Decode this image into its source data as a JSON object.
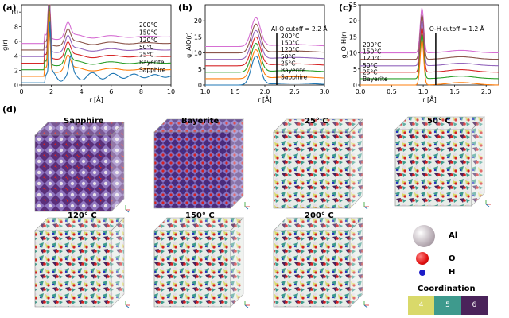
{
  "figure": {
    "panel_a_label": "(a)",
    "panel_b_label": "(b)",
    "panel_c_label": "(c)",
    "panel_d_label": "(d)",
    "colors": {
      "200C": "#d66fd3",
      "150C": "#8c564b",
      "120C": "#9467bd",
      "50C": "#d62728",
      "25C": "#2ca02c",
      "Bayerite": "#ff7f0e",
      "Sapphire": "#1f77b4",
      "cutoff": "#000000"
    }
  },
  "chart_data": [
    {
      "type": "line",
      "panel": "(a)",
      "title": "",
      "xlabel": "r [Å]",
      "ylabel": "g(r)",
      "xlim": [
        0,
        10
      ],
      "ylim": [
        0,
        11
      ],
      "xticks": [
        "0",
        "2",
        "4",
        "6",
        "8",
        "10"
      ],
      "yticks": [
        "0",
        "2",
        "4",
        "6",
        "8",
        "10"
      ],
      "offset_legend": [
        "200°C",
        "150°C",
        "120°C",
        "50°C",
        "25°C",
        "Bayerite",
        "Sapphire"
      ],
      "series": [
        {
          "name": "200°C",
          "offset": 6.0,
          "color": "#d66fd3"
        },
        {
          "name": "150°C",
          "offset": 5.0,
          "color": "#8c564b"
        },
        {
          "name": "120°C",
          "offset": 4.0,
          "color": "#9467bd"
        },
        {
          "name": "50°C",
          "offset": 3.0,
          "color": "#d62728"
        },
        {
          "name": "25°C",
          "offset": 2.0,
          "color": "#2ca02c"
        },
        {
          "name": "Bayerite",
          "offset": 1.0,
          "color": "#ff7f0e"
        },
        {
          "name": "Sapphire",
          "offset": 0.0,
          "color": "#1f77b4"
        }
      ]
    },
    {
      "type": "line",
      "panel": "(b)",
      "title": "",
      "xlabel": "r [Å]",
      "ylabel": "g_AlO(r)",
      "xlim": [
        1.0,
        3.0
      ],
      "ylim": [
        0,
        25
      ],
      "xticks": [
        "1.0",
        "1.5",
        "2.0",
        "2.5",
        "3.0"
      ],
      "yticks": [
        "0",
        "5",
        "10",
        "15",
        "20"
      ],
      "cutoff_label": "Al-O cutoff = 2.2 Å",
      "cutoff_x": 2.2,
      "offset_legend": [
        "200°C",
        "150°C",
        "120°C",
        "50°C",
        "25°C",
        "Bayerite",
        "Sapphire"
      ],
      "series": [
        {
          "name": "200°C",
          "offset": 12.0,
          "color": "#d66fd3"
        },
        {
          "name": "150°C",
          "offset": 10.0,
          "color": "#8c564b"
        },
        {
          "name": "120°C",
          "offset": 8.0,
          "color": "#9467bd"
        },
        {
          "name": "50°C",
          "offset": 6.0,
          "color": "#d62728"
        },
        {
          "name": "25°C",
          "offset": 4.0,
          "color": "#2ca02c"
        },
        {
          "name": "Bayerite",
          "offset": 2.0,
          "color": "#ff7f0e"
        },
        {
          "name": "Sapphire",
          "offset": 0.0,
          "color": "#1f77b4"
        }
      ]
    },
    {
      "type": "line",
      "panel": "(c)",
      "title": "",
      "xlabel": "r [Å]",
      "ylabel": "g_O-H(r)",
      "xlim": [
        0.0,
        2.2
      ],
      "ylim": [
        0,
        25
      ],
      "xticks": [
        "0.0",
        "0.5",
        "1.0",
        "1.5",
        "2.0"
      ],
      "yticks": [
        "0",
        "5",
        "10",
        "15",
        "20",
        "25"
      ],
      "cutoff_label": "O-H cutoff = 1.2 Å",
      "cutoff_x": 1.2,
      "offset_legend": [
        "200°C",
        "150°C",
        "120°C",
        "50°C",
        "25°C",
        "Bayerite"
      ],
      "series": [
        {
          "name": "200°C",
          "offset": 10.0,
          "color": "#d66fd3"
        },
        {
          "name": "150°C",
          "offset": 8.0,
          "color": "#8c564b"
        },
        {
          "name": "120°C",
          "offset": 6.0,
          "color": "#9467bd"
        },
        {
          "name": "50°C",
          "offset": 4.0,
          "color": "#d62728"
        },
        {
          "name": "25°C",
          "offset": 2.0,
          "color": "#2ca02c"
        },
        {
          "name": "Bayerite",
          "offset": 0.0,
          "color": "#ff7f0e"
        }
      ]
    }
  ],
  "structures": {
    "labels": [
      "Sapphire",
      "Bayerite",
      "25°  C",
      "50°  C",
      "120°  C",
      "150°  C",
      "200°  C"
    ],
    "legend": {
      "Al": "Al",
      "O": "O",
      "H": "H",
      "coordination_title": "Coordination",
      "coordination_values": [
        "4",
        "5",
        "6"
      ],
      "coordination_colors": [
        "#d9d96a",
        "#3e9a8d",
        "#4a235a"
      ]
    }
  }
}
